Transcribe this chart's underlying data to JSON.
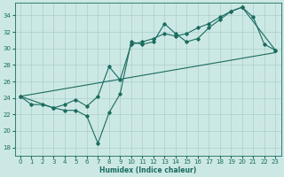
{
  "xlabel": "Humidex (Indice chaleur)",
  "xlim": [
    -0.5,
    23.5
  ],
  "ylim": [
    17.0,
    35.5
  ],
  "yticks": [
    18,
    20,
    22,
    24,
    26,
    28,
    30,
    32,
    34
  ],
  "xticks": [
    0,
    1,
    2,
    3,
    4,
    5,
    6,
    7,
    8,
    9,
    10,
    11,
    12,
    13,
    14,
    15,
    16,
    17,
    18,
    19,
    20,
    21,
    22,
    23
  ],
  "bg_color": "#cce8e5",
  "grid_color": "#aacfcc",
  "line_color": "#1a6b5e",
  "line1_x": [
    0,
    1,
    2,
    3,
    4,
    5,
    6,
    7,
    8,
    9,
    10,
    11,
    12,
    13,
    14,
    15,
    16,
    17,
    18,
    19,
    20,
    21,
    22,
    23
  ],
  "line1_y": [
    24.2,
    23.2,
    23.2,
    22.8,
    22.5,
    22.5,
    21.8,
    18.5,
    22.2,
    24.5,
    30.8,
    30.5,
    30.8,
    33.0,
    31.8,
    30.8,
    31.2,
    32.5,
    33.5,
    34.5,
    35.0,
    33.8,
    30.5,
    29.8
  ],
  "line2_x": [
    0,
    3,
    4,
    5,
    6,
    7,
    8,
    9,
    10,
    11,
    12,
    13,
    14,
    15,
    16,
    17,
    18,
    19,
    20,
    23
  ],
  "line2_y": [
    24.2,
    22.8,
    23.2,
    23.8,
    23.0,
    24.2,
    27.8,
    26.2,
    30.5,
    30.8,
    31.2,
    31.8,
    31.5,
    31.8,
    32.5,
    33.0,
    33.8,
    34.5,
    35.0,
    29.8
  ],
  "line3_x": [
    0,
    23
  ],
  "line3_y": [
    24.2,
    29.5
  ],
  "figsize": [
    3.2,
    2.0
  ],
  "dpi": 100
}
